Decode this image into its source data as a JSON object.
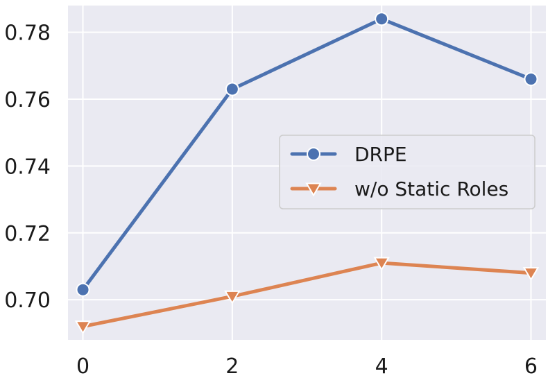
{
  "chart_data": {
    "type": "line",
    "x": [
      0,
      2,
      4,
      6
    ],
    "series": [
      {
        "name": "DRPE",
        "values": [
          0.703,
          0.763,
          0.784,
          0.766
        ],
        "color": "#4C72B0",
        "marker": "circle"
      },
      {
        "name": "w/o Static Roles",
        "values": [
          0.692,
          0.701,
          0.711,
          0.708
        ],
        "color": "#DD8452",
        "marker": "triangle-down"
      }
    ],
    "xticks": [
      "0",
      "2",
      "4",
      "6"
    ],
    "yticks": [
      "0.70",
      "0.72",
      "0.74",
      "0.76",
      "0.78"
    ],
    "xlim": [
      -0.2,
      6.2
    ],
    "ylim": [
      0.688,
      0.788
    ],
    "grid": true,
    "legend_position": "center-right",
    "plot_background": "#EAEAF2",
    "title": "",
    "xlabel": "",
    "ylabel": ""
  }
}
